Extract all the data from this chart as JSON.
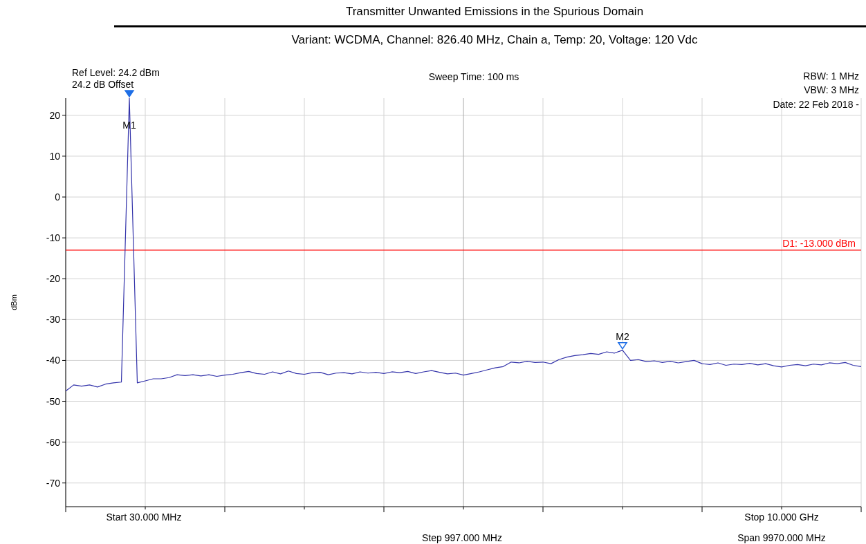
{
  "chart_data": {
    "type": "line",
    "title": "Transmitter Unwanted Emissions in the Spurious Domain",
    "subtitle": "Variant: WCDMA, Channel: 826.40 MHz, Chain a, Temp: 20, Voltage: 120 Vdc",
    "ylabel": "dBm",
    "categories": [
      null,
      null,
      null,
      null,
      null,
      null,
      null,
      null,
      null,
      null,
      null,
      null,
      null,
      null,
      null,
      null,
      null,
      null,
      null,
      null,
      null,
      null,
      null,
      null,
      null,
      null,
      null,
      null,
      null,
      null,
      null,
      null,
      null,
      null,
      null,
      null,
      null,
      null,
      null,
      null,
      null,
      null,
      null,
      null,
      null,
      null,
      null,
      null,
      null,
      null,
      null,
      null,
      null,
      null,
      null,
      null,
      null,
      null,
      null,
      null,
      null,
      null,
      null,
      null,
      null,
      null,
      null,
      null,
      null,
      null,
      null,
      null,
      null,
      null,
      null,
      null,
      null,
      null,
      null,
      null,
      null,
      null,
      null,
      null,
      null,
      null,
      null,
      null,
      null,
      null,
      null,
      null,
      null,
      null,
      null,
      null,
      null,
      null,
      null,
      null,
      null
    ],
    "series": [
      {
        "color": "#3333aa",
        "values": [
          -47.5,
          -46,
          -46.3,
          -46,
          -46.5,
          -45.8,
          -45.5,
          -45.3,
          24.2,
          -45.5,
          -45,
          -44.5,
          -44.5,
          -44.2,
          -43.5,
          -43.7,
          -43.5,
          -43.8,
          -43.5,
          -43.9,
          -43.6,
          -43.4,
          -43,
          -42.7,
          -43.2,
          -43.4,
          -42.8,
          -43.3,
          -42.6,
          -43.2,
          -43.4,
          -43,
          -42.9,
          -43.5,
          -43.1,
          -43,
          -43.3,
          -42.8,
          -43.1,
          -42.9,
          -43.2,
          -42.8,
          -43,
          -42.7,
          -43.2,
          -42.8,
          -42.5,
          -42.9,
          -43.3,
          -43.1,
          -43.6,
          -43.2,
          -42.8,
          -42.3,
          -41.8,
          -41.5,
          -40.4,
          -40.6,
          -40.2,
          -40.5,
          -40.4,
          -40.8,
          -39.8,
          -39.2,
          -38.8,
          -38.6,
          -38.3,
          -38.5,
          -37.9,
          -38.2,
          -37.5,
          -40,
          -39.8,
          -40.3,
          -40.1,
          -40.5,
          -40.2,
          -40.6,
          -40.3,
          -40,
          -40.8,
          -41,
          -40.6,
          -41.2,
          -40.9,
          -41,
          -40.7,
          -41.1,
          -40.8,
          -41.3,
          -41.6,
          -41.2,
          -41,
          -41.3,
          -40.9,
          -41.1,
          -40.6,
          -40.8,
          -40.5,
          -41.2,
          -41.5
        ]
      }
    ],
    "ylim": [
      -75.8,
      24.2
    ],
    "yticks": [
      20,
      10,
      0,
      -10,
      -20,
      -30,
      -40,
      -50,
      -60,
      -70
    ],
    "grid": true,
    "tick_labels": "y",
    "marker": "none",
    "line_style": "solid",
    "ref_lines": [
      {
        "axis": "y",
        "value": -13,
        "label": "D1: -13.000 dBm",
        "color": "#ff0000"
      }
    ],
    "annotations": [
      "Ref Level: 24.2 dBm",
      "24.2 dB Offset",
      "Sweep Time: 100 ms",
      "RBW: 1 MHz",
      "VBW: 3 MHz",
      "Date: 22 Feb 2018 -",
      "Start 30.000 MHz",
      "Step 997.000 MHz",
      "Stop 10.000 GHz",
      "Span 9970.000 MHz",
      {
        "text": "M1",
        "y": 24.2
      },
      {
        "text": "M2",
        "y": -37.5
      }
    ]
  }
}
